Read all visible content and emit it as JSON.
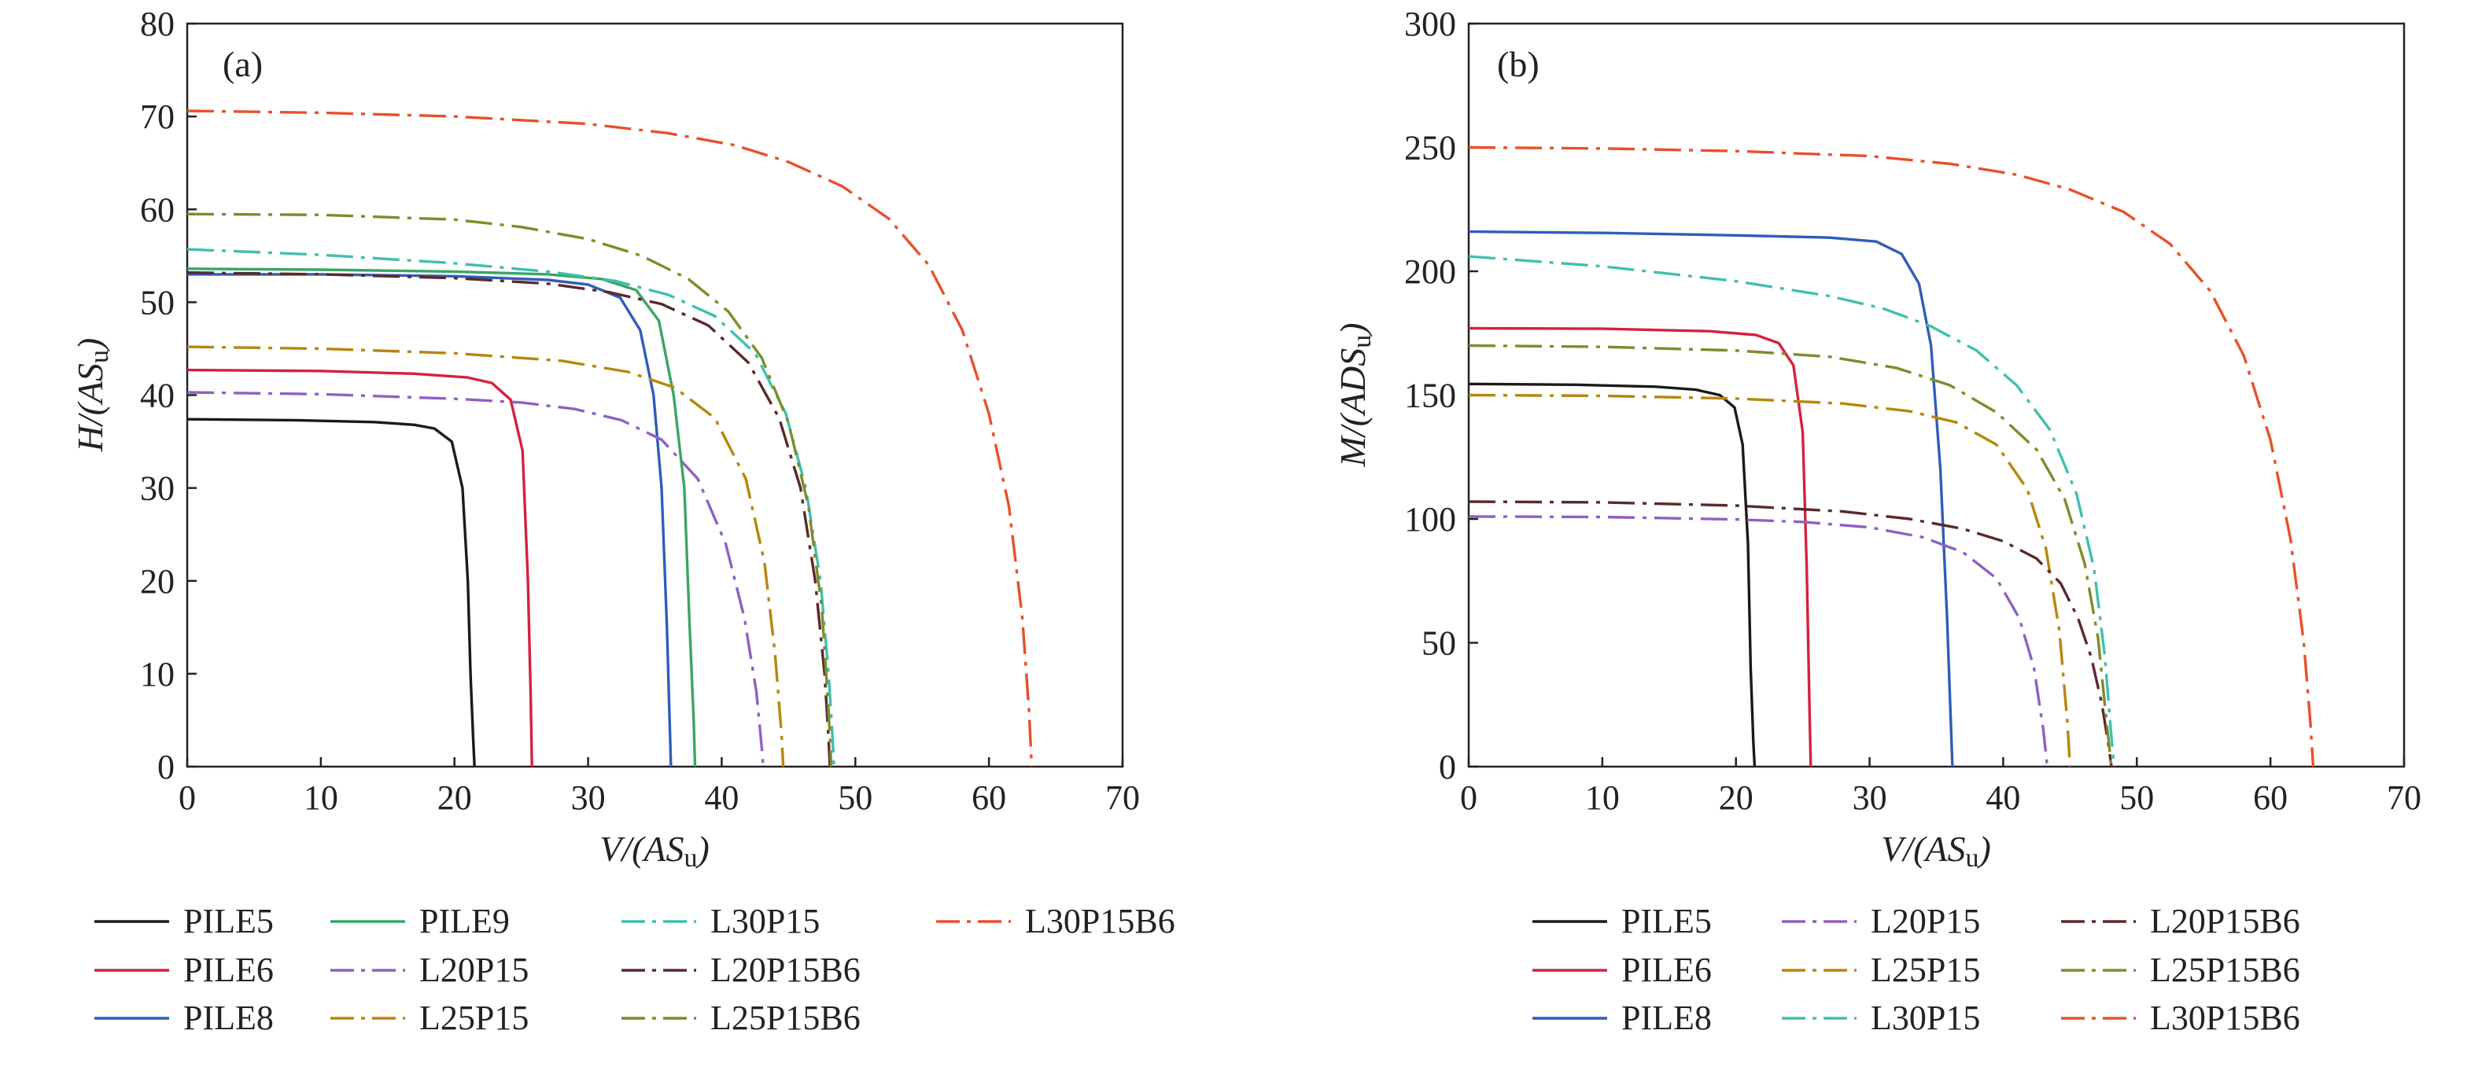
{
  "chart_data": [
    {
      "panel": "(a)",
      "type": "line",
      "xlabel": "V/(AS_u)",
      "ylabel": "H/(AS_u)",
      "xlim": [
        0,
        70
      ],
      "ylim": [
        0,
        80
      ],
      "xticks": [
        "0",
        "10",
        "20",
        "30",
        "40",
        "50",
        "60",
        "70"
      ],
      "yticks": [
        "0",
        "10",
        "20",
        "30",
        "40",
        "50",
        "60",
        "70",
        "80"
      ],
      "legend_position": "bottom",
      "series": [
        {
          "name": "PILE5",
          "color": "#1a1a1a",
          "dash": "solid",
          "x": [
            0,
            8,
            14,
            17,
            18.5,
            19.8,
            20.6,
            21.0,
            21.2,
            21.4,
            21.5
          ],
          "y": [
            37.4,
            37.3,
            37.1,
            36.8,
            36.4,
            35.0,
            30,
            20,
            10,
            3,
            0
          ]
        },
        {
          "name": "PILE6",
          "color": "#d4213d",
          "dash": "solid",
          "x": [
            0,
            10,
            17,
            21,
            22.8,
            24.2,
            25.1,
            25.5,
            25.7,
            25.8
          ],
          "y": [
            42.7,
            42.6,
            42.3,
            41.9,
            41.3,
            39.5,
            34,
            20,
            8,
            0
          ]
        },
        {
          "name": "PILE8",
          "color": "#2f5db8",
          "dash": "solid",
          "x": [
            0,
            10,
            20,
            27,
            30,
            32.4,
            33.9,
            34.9,
            35.5,
            35.9,
            36.1,
            36.2
          ],
          "y": [
            53.0,
            53.0,
            52.8,
            52.4,
            51.9,
            50.5,
            47,
            40,
            30,
            15,
            5,
            0
          ]
        },
        {
          "name": "PILE9",
          "color": "#3aa564",
          "dash": "solid",
          "x": [
            0,
            10,
            20,
            27,
            31,
            33.6,
            35.3,
            36.4,
            37.2,
            37.6,
            37.9,
            38.0
          ],
          "y": [
            53.6,
            53.5,
            53.3,
            53.0,
            52.5,
            51.3,
            48,
            40,
            30,
            15,
            5,
            0
          ]
        },
        {
          "name": "L20P15",
          "color": "#9060c0",
          "dash": "dashdot",
          "x": [
            0,
            10,
            20,
            25,
            29,
            32.5,
            35.5,
            38.2,
            40.3,
            41.7,
            42.6,
            43.0,
            43.1
          ],
          "y": [
            40.3,
            40.1,
            39.6,
            39.2,
            38.5,
            37.3,
            35.2,
            31,
            24,
            16,
            8,
            2,
            0
          ]
        },
        {
          "name": "L25P15",
          "color": "#b8860b",
          "dash": "dashdot",
          "x": [
            0,
            10,
            20,
            28,
            33,
            36.5,
            39.5,
            41.8,
            43.2,
            44.0,
            44.5,
            44.6
          ],
          "y": [
            45.2,
            45.0,
            44.5,
            43.7,
            42.5,
            40.8,
            37.5,
            31,
            22,
            12,
            3,
            0
          ]
        },
        {
          "name": "L30P15",
          "color": "#40bfb0",
          "dash": "dashdot",
          "x": [
            0,
            10,
            20,
            27,
            32,
            36,
            39.5,
            42.5,
            44.8,
            46.3,
            47.4,
            48.0,
            48.3,
            48.4
          ],
          "y": [
            55.7,
            55.1,
            54.2,
            53.3,
            52.3,
            50.8,
            48.5,
            44.5,
            38,
            30,
            20,
            10,
            3,
            0
          ]
        },
        {
          "name": "L20P15B6",
          "color": "#5a2a2a",
          "dash": "dashdot",
          "x": [
            0,
            10,
            20,
            27,
            31.5,
            35.5,
            39,
            42,
            44.3,
            45.9,
            47.0,
            47.7,
            48.0,
            48.1
          ],
          "y": [
            53.2,
            53.0,
            52.6,
            52.0,
            51.1,
            49.8,
            47.5,
            43.5,
            37.5,
            30,
            20,
            10,
            3,
            0
          ]
        },
        {
          "name": "L25P15B6",
          "color": "#7f8c2a",
          "dash": "dashdot",
          "x": [
            0,
            10,
            20,
            25,
            30,
            34,
            37.5,
            40.5,
            43,
            45,
            46.5,
            47.5,
            48.0,
            48.2
          ],
          "y": [
            59.5,
            59.4,
            58.9,
            58.1,
            56.8,
            55.0,
            52.5,
            49,
            44,
            37,
            28,
            17,
            6,
            0
          ]
        },
        {
          "name": "L30P15B6",
          "color": "#e8502a",
          "dash": "dashdot",
          "x": [
            0,
            10,
            20,
            30,
            36,
            41,
            45,
            49,
            52.5,
            55.5,
            58,
            60,
            61.5,
            62.5,
            63.0,
            63.2
          ],
          "y": [
            70.6,
            70.4,
            70.0,
            69.2,
            68.2,
            66.9,
            65.1,
            62.5,
            59,
            54,
            47,
            38,
            28,
            16,
            6,
            0
          ]
        }
      ],
      "legend": {
        "columns": [
          [
            "PILE5",
            "PILE6",
            "PILE8"
          ],
          [
            "PILE9",
            "L20P15",
            "L25P15"
          ],
          [
            "L30P15",
            "L20P15B6",
            "L25P15B6"
          ],
          [
            "L30P15B6"
          ]
        ]
      }
    },
    {
      "panel": "(b)",
      "type": "line",
      "xlabel": "V/(AS_u)",
      "ylabel": "M/(ADS_u)",
      "xlim": [
        0,
        70
      ],
      "ylim": [
        0,
        300
      ],
      "xticks": [
        "0",
        "10",
        "20",
        "30",
        "40",
        "50",
        "60",
        "70"
      ],
      "yticks": [
        "0",
        "50",
        "100",
        "150",
        "200",
        "250",
        "300"
      ],
      "legend_position": "bottom",
      "series": [
        {
          "name": "PILE5",
          "color": "#1a1a1a",
          "dash": "solid",
          "x": [
            0,
            8,
            14,
            17,
            18.8,
            19.9,
            20.5,
            20.9,
            21.1,
            21.3,
            21.4
          ],
          "y": [
            154.5,
            154.2,
            153.4,
            152.2,
            150,
            145,
            130,
            90,
            40,
            10,
            0
          ]
        },
        {
          "name": "PILE6",
          "color": "#d4213d",
          "dash": "solid",
          "x": [
            0,
            10,
            18,
            21.5,
            23.2,
            24.3,
            25.0,
            25.3,
            25.5,
            25.6
          ],
          "y": [
            177,
            176.8,
            175.8,
            174.3,
            171,
            162,
            135,
            80,
            25,
            0
          ]
        },
        {
          "name": "PILE8",
          "color": "#2f5db8",
          "dash": "solid",
          "x": [
            0,
            10,
            20,
            27,
            30.5,
            32.4,
            33.7,
            34.6,
            35.3,
            35.8,
            36.1,
            36.2
          ],
          "y": [
            216,
            215.5,
            214.5,
            213.6,
            212,
            207,
            195,
            170,
            120,
            60,
            15,
            0
          ]
        },
        {
          "name": "L20P15",
          "color": "#9060c0",
          "dash": "dashdot",
          "x": [
            0,
            10,
            20,
            25,
            30,
            34,
            37,
            39.5,
            41.2,
            42.3,
            43.0,
            43.3
          ],
          "y": [
            101,
            100.8,
            99.8,
            98.8,
            96.6,
            92.6,
            86.5,
            76,
            60,
            40,
            15,
            0
          ]
        },
        {
          "name": "L25P15",
          "color": "#b8860b",
          "dash": "dashdot",
          "x": [
            0,
            10,
            20,
            28,
            33,
            36.5,
            39.5,
            41.8,
            43.2,
            44.2,
            44.8,
            45.0
          ],
          "y": [
            150,
            149.7,
            148.6,
            146.6,
            143.5,
            139,
            130,
            112,
            88,
            55,
            18,
            0
          ]
        },
        {
          "name": "L30P15",
          "color": "#40bfb0",
          "dash": "dashdot",
          "x": [
            0,
            10,
            20,
            27,
            31,
            34.5,
            38,
            41,
            43.5,
            45.5,
            46.8,
            47.6,
            48.1,
            48.3
          ],
          "y": [
            206,
            202,
            196,
            190,
            185,
            178,
            168,
            154,
            136,
            110,
            80,
            45,
            12,
            0
          ]
        },
        {
          "name": "L20P15B6",
          "color": "#5a2a2a",
          "dash": "dashdot",
          "x": [
            0,
            10,
            20,
            28,
            33,
            37,
            40,
            42.5,
            44.3,
            45.6,
            46.6,
            47.4,
            47.9,
            48.1
          ],
          "y": [
            107,
            106.7,
            105.4,
            103,
            100,
            96,
            91,
            84,
            74,
            60,
            44,
            25,
            8,
            0
          ]
        },
        {
          "name": "L25P15B6",
          "color": "#7f8c2a",
          "dash": "dashdot",
          "x": [
            0,
            10,
            20,
            27,
            32,
            36,
            39.5,
            42.5,
            44.6,
            46.1,
            47.1,
            47.7,
            48.1
          ],
          "y": [
            170,
            169.5,
            168,
            165.5,
            161,
            154,
            143,
            128,
            108,
            82,
            52,
            20,
            0
          ]
        },
        {
          "name": "L30P15B6",
          "color": "#e8502a",
          "dash": "dashdot",
          "x": [
            0,
            10,
            20,
            30,
            36,
            41,
            45,
            49,
            52.5,
            55.5,
            58,
            60,
            61.5,
            62.5,
            63.0,
            63.2
          ],
          "y": [
            250,
            249.6,
            248.5,
            246.5,
            243.4,
            239,
            233,
            224,
            211,
            192,
            166,
            132,
            92,
            50,
            17,
            0
          ]
        }
      ],
      "legend": {
        "columns": [
          [
            "PILE5",
            "PILE6",
            "PILE8"
          ],
          [
            "L20P15",
            "L25P15",
            "L30P15"
          ],
          [
            "L20P15B6",
            "L25P15B6",
            "L30P15B6"
          ]
        ]
      }
    }
  ]
}
